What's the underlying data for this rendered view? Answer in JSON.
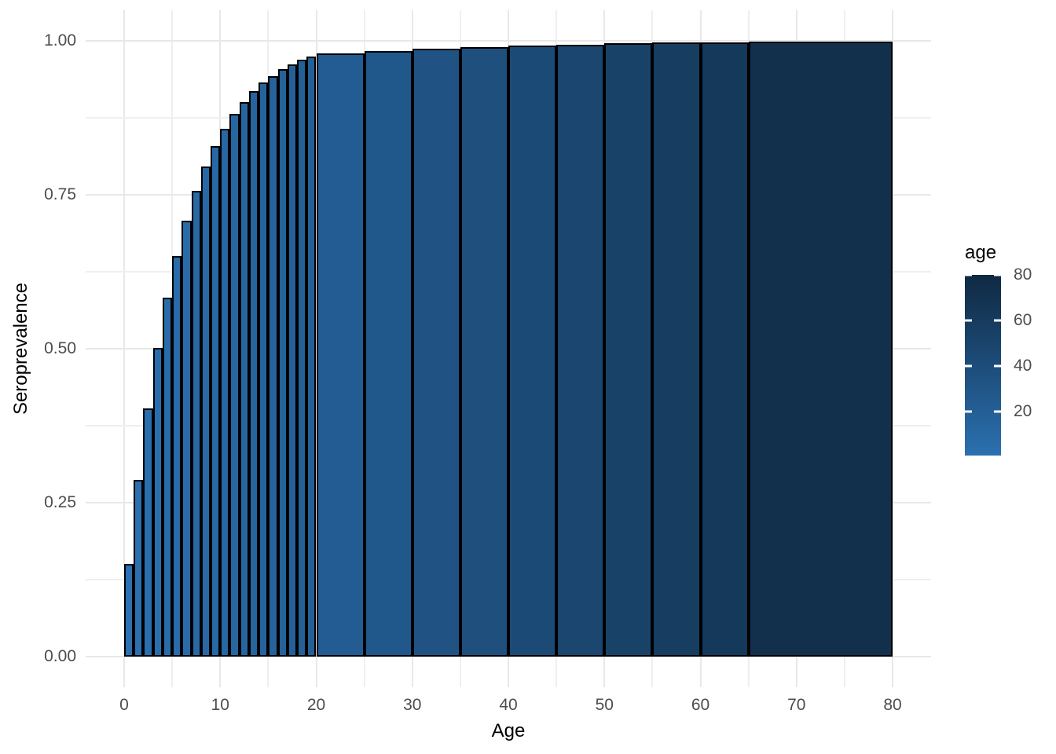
{
  "figure": {
    "background_color": "#ffffff",
    "grid_major_color": "#e8e8e8",
    "grid_minor_color": "#efefef",
    "tick_label_color": "#4d4d4d",
    "title_color": "#000000",
    "bar_border_color": "#000000"
  },
  "chart_data": {
    "type": "bar",
    "title": "",
    "xlabel": "Age",
    "ylabel": "Seroprevalence",
    "xlim": [
      0,
      80
    ],
    "ylim": [
      0,
      1
    ],
    "grid": true,
    "x_ticks": [
      0,
      10,
      20,
      30,
      40,
      50,
      60,
      70,
      80
    ],
    "x_tick_labels": [
      "0",
      "10",
      "20",
      "30",
      "40",
      "50",
      "60",
      "70",
      "80"
    ],
    "x_minor_ticks": [
      5,
      15,
      25,
      35,
      45,
      55,
      65,
      75
    ],
    "y_ticks": [
      0,
      0.25,
      0.5,
      0.75,
      1.0
    ],
    "y_tick_labels": [
      "0.00",
      "0.25",
      "0.50",
      "0.75",
      "1.00"
    ],
    "y_minor_ticks": [
      0.125,
      0.375,
      0.625,
      0.875
    ],
    "bars": [
      {
        "age_from": 0,
        "age_to": 1,
        "seroprevalence": 0.15
      },
      {
        "age_from": 1,
        "age_to": 2,
        "seroprevalence": 0.287
      },
      {
        "age_from": 2,
        "age_to": 3,
        "seroprevalence": 0.403
      },
      {
        "age_from": 3,
        "age_to": 4,
        "seroprevalence": 0.501
      },
      {
        "age_from": 4,
        "age_to": 5,
        "seroprevalence": 0.583
      },
      {
        "age_from": 5,
        "age_to": 6,
        "seroprevalence": 0.651
      },
      {
        "age_from": 6,
        "age_to": 7,
        "seroprevalence": 0.708
      },
      {
        "age_from": 7,
        "age_to": 8,
        "seroprevalence": 0.756
      },
      {
        "age_from": 8,
        "age_to": 9,
        "seroprevalence": 0.796
      },
      {
        "age_from": 9,
        "age_to": 10,
        "seroprevalence": 0.829
      },
      {
        "age_from": 10,
        "age_to": 11,
        "seroprevalence": 0.857
      },
      {
        "age_from": 11,
        "age_to": 12,
        "seroprevalence": 0.881
      },
      {
        "age_from": 12,
        "age_to": 13,
        "seroprevalence": 0.901
      },
      {
        "age_from": 13,
        "age_to": 14,
        "seroprevalence": 0.918
      },
      {
        "age_from": 14,
        "age_to": 15,
        "seroprevalence": 0.932
      },
      {
        "age_from": 15,
        "age_to": 16,
        "seroprevalence": 0.943
      },
      {
        "age_from": 16,
        "age_to": 17,
        "seroprevalence": 0.954
      },
      {
        "age_from": 17,
        "age_to": 18,
        "seroprevalence": 0.962
      },
      {
        "age_from": 18,
        "age_to": 19,
        "seroprevalence": 0.97
      },
      {
        "age_from": 19,
        "age_to": 20,
        "seroprevalence": 0.975
      },
      {
        "age_from": 20,
        "age_to": 25,
        "seroprevalence": 0.98
      },
      {
        "age_from": 25,
        "age_to": 30,
        "seroprevalence": 0.984
      },
      {
        "age_from": 30,
        "age_to": 35,
        "seroprevalence": 0.987
      },
      {
        "age_from": 35,
        "age_to": 40,
        "seroprevalence": 0.99
      },
      {
        "age_from": 40,
        "age_to": 45,
        "seroprevalence": 0.992
      },
      {
        "age_from": 45,
        "age_to": 50,
        "seroprevalence": 0.994
      },
      {
        "age_from": 50,
        "age_to": 55,
        "seroprevalence": 0.996
      },
      {
        "age_from": 55,
        "age_to": 60,
        "seroprevalence": 0.997
      },
      {
        "age_from": 60,
        "age_to": 65,
        "seroprevalence": 0.998
      },
      {
        "age_from": 65,
        "age_to": 80,
        "seroprevalence": 0.999
      }
    ],
    "fill": {
      "variable": "age",
      "mapped_to": "bar age midpoint",
      "low_color": "#2B70B0",
      "high_color": "#0F2942",
      "domain": [
        0.5,
        80
      ]
    },
    "legend": {
      "title": "age",
      "position": "right",
      "type": "colorbar",
      "ticks": [
        20,
        40,
        60,
        80
      ],
      "tick_labels": [
        "20",
        "40",
        "60",
        "80"
      ]
    }
  }
}
